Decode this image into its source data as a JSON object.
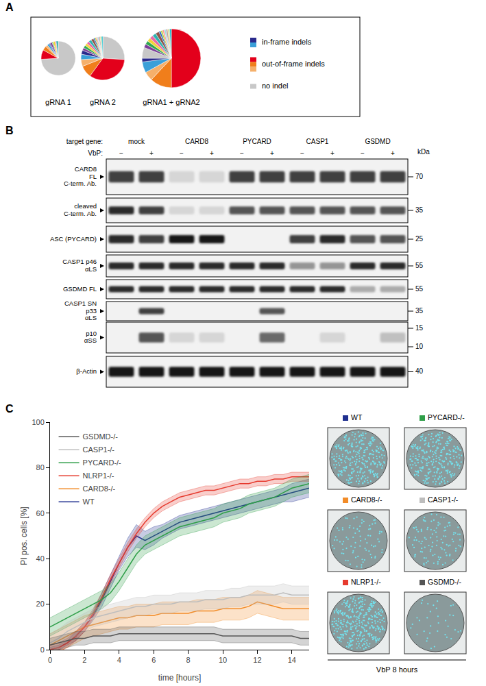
{
  "panel_labels": [
    "A",
    "B",
    "C"
  ],
  "chart_data": [
    {
      "type": "pie",
      "title": "gRNA 1",
      "values": [
        74,
        9,
        4,
        2,
        2,
        1,
        2,
        1,
        2,
        1,
        2
      ],
      "colors": [
        "#c8c8c8",
        "#e3001b",
        "#f07e1b",
        "#f5b06b",
        "#3a9fd8",
        "#2a2a8c",
        "#7b3f99",
        "#2fa84f",
        "#f2d43a",
        "#e86aa6",
        "#2ab3b0"
      ]
    },
    {
      "type": "pie",
      "title": "gRNA 2",
      "values": [
        26,
        34,
        9,
        5,
        4,
        3,
        2,
        2,
        2,
        2,
        2,
        2,
        1,
        1,
        1,
        1,
        1,
        1,
        1
      ],
      "colors": [
        "#c8c8c8",
        "#e3001b",
        "#f07e1b",
        "#f5b06b",
        "#3a9fd8",
        "#2a2a8c",
        "#7b3f99",
        "#2fa84f",
        "#f2d43a",
        "#e86aa6",
        "#2ab3b0",
        "#8c564b",
        "#1f5fbf",
        "#b5d335",
        "#ff9896",
        "#9edae5",
        "#c49c94",
        "#dbdb8d",
        "#17becf"
      ]
    },
    {
      "type": "pie",
      "title": "gRNA1 + gRNA2",
      "values": [
        50,
        12,
        5,
        6,
        2,
        6,
        2,
        2,
        2,
        2,
        2,
        2,
        1,
        1,
        1,
        1,
        1,
        1,
        1
      ],
      "colors": [
        "#e3001b",
        "#f07e1b",
        "#f5b06b",
        "#3a9fd8",
        "#2a2a8c",
        "#c8c8c8",
        "#7b3f99",
        "#2fa84f",
        "#f2d43a",
        "#e86aa6",
        "#2ab3b0",
        "#8c564b",
        "#1f5fbf",
        "#b5d335",
        "#ff9896",
        "#9edae5",
        "#c49c94",
        "#dbdb8d",
        "#17becf"
      ]
    },
    {
      "type": "line",
      "x_label": "time [hours]",
      "y_label": "PI pos. cells [%]",
      "xlim": [
        0,
        15
      ],
      "xticks": [
        0,
        2,
        4,
        6,
        8,
        10,
        12,
        14
      ],
      "ylim": [
        0,
        100
      ],
      "yticks": [
        0,
        20,
        40,
        60,
        80,
        100
      ],
      "grid": false,
      "legend": "top-left",
      "x": [
        0,
        0.5,
        1,
        1.5,
        2,
        2.5,
        3,
        3.5,
        4,
        4.5,
        5,
        5.5,
        6,
        6.5,
        7,
        7.5,
        8,
        8.5,
        9,
        9.5,
        10,
        10.5,
        11,
        11.5,
        12,
        12.5,
        13,
        13.5,
        14,
        14.5,
        15
      ],
      "series": [
        {
          "name": "WT",
          "color": "#1f2f8f",
          "values": [
            0,
            1,
            3,
            6,
            10,
            15,
            22,
            30,
            38,
            45,
            50,
            48,
            50,
            52,
            54,
            56,
            57,
            58,
            59,
            60,
            61,
            62,
            63,
            64,
            65,
            66,
            67,
            68,
            69,
            70,
            71
          ],
          "error": [
            1,
            1,
            1,
            2,
            2,
            2,
            3,
            3,
            3,
            4,
            5,
            4,
            4,
            3,
            3,
            3,
            3,
            3,
            3,
            3,
            3,
            3,
            3,
            3,
            3,
            3,
            3,
            3,
            4,
            4,
            4
          ]
        },
        {
          "name": "CARD8-/-",
          "color": "#f28c28",
          "values": [
            2,
            4,
            6,
            8,
            10,
            11,
            12,
            13,
            14,
            14,
            15,
            15,
            15,
            16,
            16,
            16,
            16,
            17,
            17,
            17,
            18,
            18,
            18,
            19,
            21,
            20,
            19,
            18,
            18,
            18,
            18
          ],
          "error": [
            5,
            5,
            5,
            5,
            5,
            5,
            5,
            5,
            5,
            5,
            5,
            5,
            5,
            5,
            5,
            5,
            5,
            5,
            5,
            5,
            5,
            5,
            5,
            5,
            5,
            5,
            5,
            5,
            5,
            5,
            5
          ]
        },
        {
          "name": "NLRP1-/-",
          "color": "#e63a2e",
          "values": [
            0,
            1,
            3,
            6,
            10,
            16,
            23,
            31,
            38,
            45,
            51,
            56,
            60,
            63,
            65,
            67,
            68,
            69,
            70,
            70,
            71,
            72,
            73,
            73,
            74,
            74,
            75,
            75,
            76,
            76,
            76
          ],
          "error": [
            2,
            2,
            2,
            2,
            2,
            2,
            2,
            2,
            2,
            2,
            2,
            2,
            2,
            2,
            2,
            2,
            2,
            2,
            2,
            2,
            2,
            2,
            2,
            2,
            2,
            2,
            2,
            2,
            2,
            2,
            2
          ]
        },
        {
          "name": "PYCARD-/-",
          "color": "#2e9e48",
          "values": [
            10,
            12,
            14,
            16,
            18,
            20,
            22,
            25,
            30,
            36,
            42,
            46,
            48,
            50,
            52,
            54,
            55,
            56,
            57,
            58,
            60,
            61,
            62,
            64,
            65,
            66,
            67,
            69,
            71,
            72,
            73
          ],
          "error": [
            4,
            4,
            4,
            4,
            4,
            4,
            4,
            4,
            4,
            4,
            4,
            4,
            4,
            4,
            4,
            4,
            4,
            4,
            4,
            4,
            4,
            4,
            4,
            4,
            4,
            4,
            4,
            4,
            4,
            4,
            4
          ]
        },
        {
          "name": "CASP1-/-",
          "color": "#bdbdbd",
          "values": [
            3,
            5,
            8,
            10,
            12,
            14,
            15,
            16,
            17,
            18,
            19,
            19,
            20,
            20,
            20,
            21,
            21,
            21,
            22,
            22,
            22,
            23,
            23,
            24,
            24,
            24,
            24,
            25,
            24,
            24,
            24
          ],
          "error": [
            4,
            4,
            4,
            4,
            4,
            4,
            4,
            4,
            4,
            4,
            4,
            4,
            4,
            4,
            4,
            4,
            4,
            4,
            4,
            4,
            4,
            4,
            4,
            4,
            4,
            4,
            4,
            4,
            4,
            4,
            4
          ]
        },
        {
          "name": "GSDMD-/-",
          "color": "#555555",
          "values": [
            2,
            3,
            4,
            5,
            5,
            6,
            6,
            6,
            7,
            7,
            7,
            7,
            7,
            7,
            7,
            7,
            7,
            7,
            7,
            7,
            6,
            6,
            6,
            6,
            6,
            6,
            6,
            6,
            6,
            5,
            5
          ],
          "error": [
            3,
            3,
            3,
            3,
            3,
            3,
            3,
            3,
            3,
            3,
            3,
            3,
            3,
            3,
            3,
            3,
            3,
            3,
            3,
            3,
            3,
            3,
            3,
            3,
            3,
            3,
            3,
            3,
            3,
            3,
            3
          ]
        }
      ]
    }
  ],
  "pie_legend": [
    {
      "label": "in-frame indels",
      "colors": [
        "#2a2a8c",
        "#3a9fd8"
      ]
    },
    {
      "label": "out-of-frame indels",
      "colors": [
        "#e3001b",
        "#f07e1b",
        "#f5b06b"
      ]
    },
    {
      "label": "no indel",
      "colors": [
        "#c8c8c8"
      ]
    }
  ],
  "blot": {
    "header_label": "target gene:",
    "treatment_label": "VbP:",
    "groups": [
      "mock",
      "CARD8",
      "PYCARD",
      "CASP1",
      "GSDMD"
    ],
    "treatment": [
      "−",
      "+"
    ],
    "unit": "kDa",
    "rows": [
      {
        "label": [
          "CARD8",
          "FL",
          "C-term. Ab."
        ],
        "markers": [
          70
        ],
        "bands": [
          0.8,
          0.8,
          0.1,
          0.1,
          0.8,
          0.8,
          0.8,
          0.8,
          0.8,
          0.8
        ]
      },
      {
        "label": [
          "cleaved",
          "C-term. Ab."
        ],
        "markers": [
          35
        ],
        "bands": [
          0.9,
          0.8,
          0.1,
          0.1,
          0.7,
          0.7,
          0.7,
          0.7,
          0.7,
          0.7
        ]
      },
      {
        "label": [
          "ASC (PYCARD)"
        ],
        "markers": [
          25
        ],
        "bands": [
          0.9,
          0.8,
          1,
          1,
          0,
          0,
          0.8,
          0.9,
          0.7,
          0.7
        ]
      },
      {
        "label": [
          "CASP1 p46",
          "αLS"
        ],
        "markers": [
          55
        ],
        "bands": [
          0.9,
          0.9,
          0.9,
          0.9,
          0.9,
          0.9,
          0.4,
          0.4,
          0.9,
          0.9
        ]
      },
      {
        "label": [
          "GSDMD FL"
        ],
        "markers": [
          55
        ],
        "bands": [
          0.9,
          0.9,
          0.9,
          0.9,
          0.9,
          0.9,
          0.9,
          0.9,
          0.3,
          0.3
        ]
      },
      {
        "label": [
          "CASP1 SN",
          "p33",
          "αLS"
        ],
        "markers": [
          35
        ],
        "bands": [
          0,
          0.8,
          0,
          0,
          0,
          0.7,
          0,
          0,
          0,
          0
        ]
      },
      {
        "label": [
          "p10",
          "αSS"
        ],
        "markers": [
          15,
          10
        ],
        "bands": [
          0,
          0.7,
          0.1,
          0.1,
          0,
          0.6,
          0,
          0.1,
          0,
          0.2
        ]
      },
      {
        "label": [
          "β-Actin"
        ],
        "markers": [
          40
        ],
        "bands": [
          1,
          1,
          1,
          1,
          1,
          1,
          1,
          1,
          1,
          1
        ]
      }
    ]
  },
  "images": {
    "caption": "VbP 8 hours",
    "time": 8,
    "order": [
      "WT",
      "PYCARD-/-",
      "CARD8-/-",
      "CASP1-/-",
      "NLRP1-/-",
      "GSDMD-/-"
    ]
  }
}
